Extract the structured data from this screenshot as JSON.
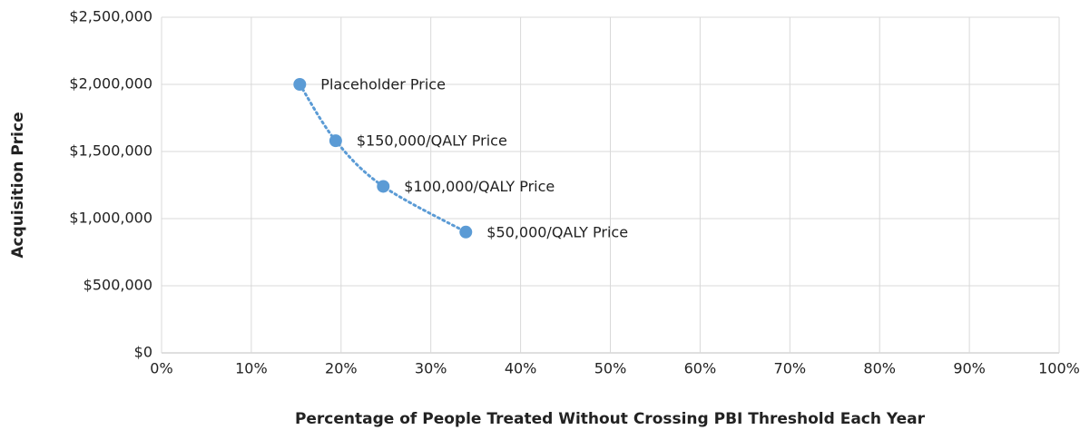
{
  "chart_data": {
    "type": "scatter",
    "x_label": "Percentage of People Treated Without Crossing PBI Threshold Each Year",
    "y_label": "Acquisition Price",
    "x": [
      15.4,
      19.4,
      24.7,
      33.9
    ],
    "values": [
      2000000,
      1580000,
      1240000,
      900000
    ],
    "point_labels": [
      "Placeholder Price",
      "$150,000/QALY Price",
      "$100,000/QALY Price",
      "$50,000/QALY Price"
    ],
    "color": "#5b9bd5",
    "line_style": "dotted",
    "xlim": [
      0,
      100
    ],
    "xticks": [
      {
        "value": 0,
        "label": "0%"
      },
      {
        "value": 10,
        "label": "10%"
      },
      {
        "value": 20,
        "label": "20%"
      },
      {
        "value": 30,
        "label": "30%"
      },
      {
        "value": 40,
        "label": "40%"
      },
      {
        "value": 50,
        "label": "50%"
      },
      {
        "value": 60,
        "label": "60%"
      },
      {
        "value": 70,
        "label": "70%"
      },
      {
        "value": 80,
        "label": "80%"
      },
      {
        "value": 90,
        "label": "90%"
      },
      {
        "value": 100,
        "label": "100%"
      }
    ],
    "ylim": [
      0,
      2500000
    ],
    "yticks": [
      {
        "value": 0,
        "label": "$0"
      },
      {
        "value": 500000,
        "label": "$500,000"
      },
      {
        "value": 1000000,
        "label": "$1,000,000"
      },
      {
        "value": 1500000,
        "label": "$1,500,000"
      },
      {
        "value": 2000000,
        "label": "$2,000,000"
      },
      {
        "value": 2500000,
        "label": "$2,500,000"
      }
    ],
    "grid": true
  }
}
